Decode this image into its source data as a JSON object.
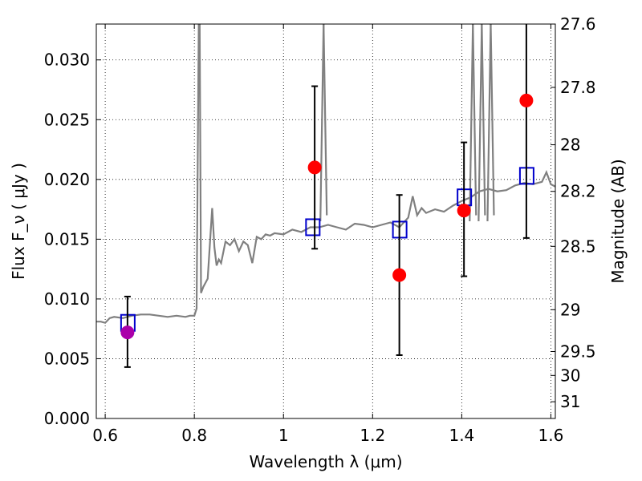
{
  "chart_data": {
    "type": "scatter",
    "title": "",
    "xlabel": "Wavelength  λ (μm)",
    "ylabel": "Flux  F_ν  ( μJy )",
    "ylabel_right": "Magnitude (AB)",
    "xlim": [
      0.58,
      1.61
    ],
    "ylim": [
      0.0,
      0.033
    ],
    "grid": true,
    "x_ticks": [
      0.6,
      0.8,
      1.0,
      1.2,
      1.4,
      1.6
    ],
    "x_tick_labels": [
      "0.6",
      "0.8",
      "1",
      "1.2",
      "1.4",
      "1.6"
    ],
    "y_ticks": [
      0.0,
      0.005,
      0.01,
      0.015,
      0.02,
      0.025,
      0.03
    ],
    "y_tick_labels": [
      "0.000",
      "0.005",
      "0.010",
      "0.015",
      "0.020",
      "0.025",
      "0.030"
    ],
    "right_ticks": [
      {
        "mag": "27.6",
        "flux": 0.033
      },
      {
        "mag": "27.8",
        "flux": 0.0277
      },
      {
        "mag": "28",
        "flux": 0.0229
      },
      {
        "mag": "28.2",
        "flux": 0.019
      },
      {
        "mag": "28.5",
        "flux": 0.0144
      },
      {
        "mag": "29",
        "flux": 0.0091
      },
      {
        "mag": "29.5",
        "flux": 0.0056
      },
      {
        "mag": "30",
        "flux": 0.0036
      },
      {
        "mag": "31",
        "flux": 0.0014
      }
    ],
    "series": [
      {
        "kind": "model_spectrum",
        "color": "#808080",
        "x": [
          0.58,
          0.59,
          0.6,
          0.61,
          0.62,
          0.64,
          0.66,
          0.68,
          0.7,
          0.72,
          0.74,
          0.76,
          0.78,
          0.79,
          0.8,
          0.805,
          0.81,
          0.812,
          0.815,
          0.82,
          0.83,
          0.84,
          0.845,
          0.85,
          0.855,
          0.86,
          0.87,
          0.88,
          0.89,
          0.9,
          0.91,
          0.92,
          0.93,
          0.94,
          0.95,
          0.96,
          0.97,
          0.98,
          1.0,
          1.02,
          1.04,
          1.06,
          1.08,
          1.1,
          1.12,
          1.14,
          1.16,
          1.18,
          1.2,
          1.22,
          1.24,
          1.26,
          1.28,
          1.29,
          1.3,
          1.31,
          1.32,
          1.34,
          1.36,
          1.38,
          1.4,
          1.42,
          1.44,
          1.46,
          1.48,
          1.5,
          1.52,
          1.54,
          1.56,
          1.58,
          1.59,
          1.6,
          1.61
        ],
        "y": [
          0.0081,
          0.0081,
          0.008,
          0.0084,
          0.0085,
          0.0084,
          0.0086,
          0.0087,
          0.0087,
          0.0086,
          0.0085,
          0.0086,
          0.0085,
          0.0086,
          0.0086,
          0.0092,
          0.033,
          0.033,
          0.0105,
          0.011,
          0.0117,
          0.0176,
          0.0143,
          0.0128,
          0.0133,
          0.013,
          0.0148,
          0.0145,
          0.015,
          0.014,
          0.0148,
          0.0145,
          0.013,
          0.0152,
          0.015,
          0.0154,
          0.0153,
          0.0155,
          0.0154,
          0.0158,
          0.0156,
          0.016,
          0.016,
          0.0162,
          0.016,
          0.0158,
          0.0163,
          0.0162,
          0.016,
          0.0162,
          0.0164,
          0.016,
          0.0168,
          0.0186,
          0.017,
          0.0176,
          0.0172,
          0.0175,
          0.0173,
          0.0178,
          0.0182,
          0.0185,
          0.019,
          0.0192,
          0.019,
          0.0191,
          0.0195,
          0.0197,
          0.0196,
          0.0198,
          0.0206,
          0.0196,
          0.0194
        ],
        "spikes": [
          {
            "x": 1.09,
            "y": 0.033
          },
          {
            "x": 1.425,
            "y": 0.033
          },
          {
            "x": 1.445,
            "y": 0.033
          },
          {
            "x": 1.465,
            "y": 0.033
          }
        ]
      },
      {
        "kind": "model_bandpass",
        "marker": "open-square",
        "color": "#0000cc",
        "x": [
          0.65,
          1.065,
          1.26,
          1.405,
          1.545
        ],
        "y": [
          0.008,
          0.016,
          0.0158,
          0.0185,
          0.0203
        ]
      },
      {
        "kind": "observed",
        "marker": "filled-circle",
        "color": "#ff0000",
        "x": [
          1.07,
          1.26,
          1.405,
          1.545
        ],
        "y": [
          0.021,
          0.012,
          0.0174,
          0.0266
        ],
        "yerr_low": [
          0.0142,
          0.0053,
          0.0119,
          0.0151
        ],
        "yerr_high": [
          0.0278,
          0.0187,
          0.0231,
          0.0331
        ]
      },
      {
        "kind": "observed",
        "marker": "filled-circle",
        "color": "#aa00aa",
        "x": [
          0.65
        ],
        "y": [
          0.0072
        ],
        "yerr_low": [
          0.0043
        ],
        "yerr_high": [
          0.0102
        ]
      }
    ]
  }
}
